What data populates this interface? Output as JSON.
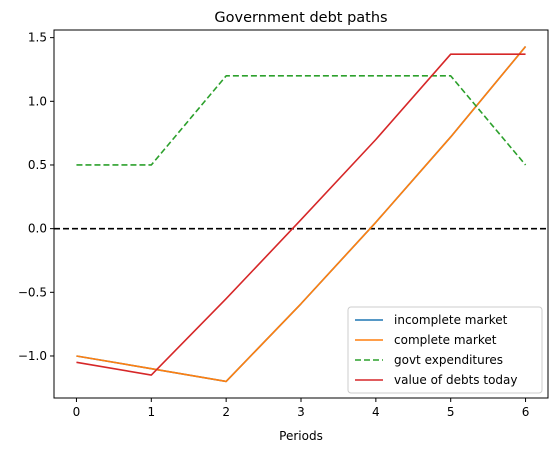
{
  "chart_data": {
    "type": "line",
    "title": "Government debt paths",
    "xlabel": "Periods",
    "ylabel": "",
    "x": [
      0,
      1,
      2,
      3,
      4,
      5,
      6
    ],
    "xlim": [
      -0.3,
      6.3
    ],
    "ylim": [
      -1.33,
      1.56
    ],
    "xticks": [
      "0",
      "1",
      "2",
      "3",
      "4",
      "5",
      "6"
    ],
    "yticks": [
      -1.0,
      -0.5,
      0.0,
      0.5,
      1.0,
      1.5
    ],
    "ytick_labels": [
      "−1.0",
      "−0.5",
      "0.0",
      "0.5",
      "1.0",
      "1.5"
    ],
    "legend_position": "lower-right",
    "grid": false,
    "hline": {
      "y": 0.0,
      "color": "#000000",
      "style": "dashed"
    },
    "series": [
      {
        "name": "incomplete market",
        "color": "#1f77b4",
        "style": "solid",
        "values": [
          -1.0,
          -1.1,
          -1.2,
          -0.59,
          0.05,
          0.72,
          1.43
        ]
      },
      {
        "name": "complete market",
        "color": "#ff7f0e",
        "style": "solid",
        "values": [
          -1.0,
          -1.1,
          -1.2,
          -0.59,
          0.05,
          0.72,
          1.43
        ]
      },
      {
        "name": "govt expenditures",
        "color": "#2ca02c",
        "style": "dashed",
        "values": [
          0.5,
          0.5,
          1.2,
          1.2,
          1.2,
          1.2,
          0.5
        ]
      },
      {
        "name": "value of debts today",
        "color": "#d62728",
        "style": "solid",
        "values": [
          -1.05,
          -1.15,
          -0.55,
          0.07,
          0.7,
          1.37,
          1.37
        ]
      }
    ]
  }
}
